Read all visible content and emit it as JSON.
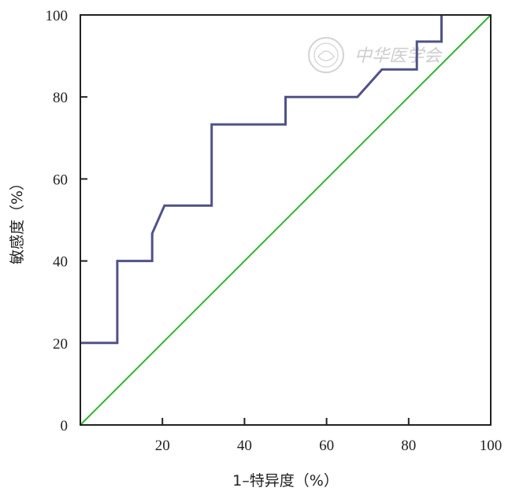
{
  "chart_data": {
    "type": "line",
    "title": "",
    "xlabel": "1–特异度（%）",
    "ylabel": "敏感度（%）",
    "xlim": [
      0,
      100
    ],
    "ylim": [
      0,
      100
    ],
    "x_ticks": [
      "20",
      "40",
      "60",
      "80",
      "100"
    ],
    "y_ticks": [
      "0",
      "20",
      "40",
      "60",
      "80",
      "100"
    ],
    "grid": false,
    "series": [
      {
        "color": "#505287",
        "step": true,
        "x": [
          0,
          9,
          9,
          17.5,
          17.5,
          20.5,
          32,
          32,
          50,
          50,
          67.5,
          73.5,
          82,
          82,
          88,
          88
        ],
        "y": [
          20,
          20,
          40,
          40,
          46.7,
          53.5,
          53.5,
          73.3,
          73.3,
          80,
          80,
          86.7,
          86.7,
          93.5,
          93.5,
          100
        ]
      },
      {
        "color": "#33b233",
        "x": [
          0,
          100
        ],
        "y": [
          0,
          100
        ]
      }
    ]
  },
  "watermark": {
    "text": "中华医学会",
    "icon": "seal-icon"
  }
}
